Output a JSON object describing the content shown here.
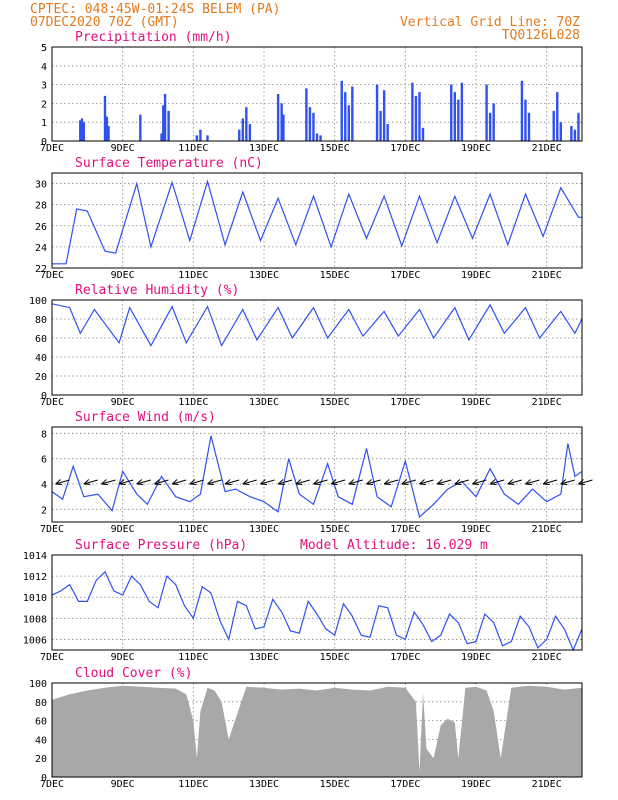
{
  "header": {
    "location": "CPTEC:  048:45W-01:24S  BELEM (PA)",
    "run": "07DEC2020 70Z (GMT)",
    "grid_line": "Vertical Grid Line: 70Z",
    "code": "TQ0126L028"
  },
  "colors": {
    "header": "#e07b1e",
    "title": "#e0117f",
    "series": "#3050f0",
    "cloud": "#a8a8a8"
  },
  "x_axis": {
    "ticks": [
      "7DEC",
      "9DEC",
      "11DEC",
      "13DEC",
      "15DEC",
      "17DEC",
      "19DEC",
      "21DEC"
    ],
    "range_days": [
      7,
      22
    ]
  },
  "chart_data": [
    {
      "id": "precip",
      "type": "bar",
      "title": "Precipitation (mm/h)",
      "ylim": [
        0,
        5
      ],
      "yticks": [
        "0",
        "1",
        "2",
        "3",
        "4",
        "5"
      ],
      "series": [
        {
          "x_days": [
            7.8,
            7.85,
            7.9,
            8.5,
            8.55,
            8.6,
            9.5,
            10.1,
            10.15,
            10.2,
            10.3,
            11.1,
            11.2,
            11.4,
            12.3,
            12.4,
            12.5,
            12.6,
            13.4,
            13.5,
            13.55,
            14.2,
            14.3,
            14.4,
            14.5,
            14.6,
            15.2,
            15.3,
            15.4,
            15.5,
            16.2,
            16.3,
            16.4,
            16.5,
            17.2,
            17.3,
            17.4,
            17.5,
            18.3,
            18.4,
            18.5,
            18.6,
            19.3,
            19.4,
            19.5,
            20.3,
            20.4,
            20.5,
            21.2,
            21.3,
            21.4,
            21.7,
            21.8,
            21.9
          ],
          "values": [
            1.1,
            1.2,
            1.0,
            2.4,
            1.3,
            0.8,
            1.4,
            0.4,
            1.9,
            2.5,
            1.6,
            0.3,
            0.6,
            0.3,
            0.6,
            1.2,
            1.8,
            0.9,
            2.5,
            2.0,
            1.4,
            2.8,
            1.8,
            1.5,
            0.4,
            0.3,
            3.2,
            2.6,
            1.9,
            2.9,
            3.0,
            1.6,
            2.7,
            0.9,
            3.1,
            2.4,
            2.6,
            0.7,
            3.0,
            2.6,
            2.2,
            3.1,
            3.0,
            1.5,
            2.0,
            3.2,
            2.2,
            1.5,
            1.6,
            2.6,
            1.0,
            0.8,
            0.6,
            1.5
          ]
        }
      ]
    },
    {
      "id": "temp",
      "type": "line",
      "title": "Surface Temperature (nC)",
      "ylim": [
        22,
        31
      ],
      "yticks": [
        "22",
        "24",
        "26",
        "28",
        "30"
      ],
      "series": [
        {
          "x_days": [
            7,
            7.4,
            7.7,
            8.0,
            8.5,
            8.8,
            9.4,
            9.8,
            10.4,
            10.9,
            11.4,
            11.9,
            12.4,
            12.9,
            13.4,
            13.9,
            14.4,
            14.9,
            15.4,
            15.9,
            16.4,
            16.9,
            17.4,
            17.9,
            18.4,
            18.9,
            19.4,
            19.9,
            20.4,
            20.9,
            21.4,
            21.9,
            22
          ],
          "values": [
            22.4,
            22.4,
            27.6,
            27.4,
            23.6,
            23.4,
            30.0,
            24.0,
            30.1,
            24.6,
            30.2,
            24.2,
            29.2,
            24.6,
            28.6,
            24.2,
            28.8,
            24.0,
            29.0,
            24.8,
            28.8,
            24.1,
            28.8,
            24.4,
            28.8,
            24.8,
            29.0,
            24.2,
            29.0,
            25.0,
            29.6,
            26.8,
            26.8
          ]
        }
      ]
    },
    {
      "id": "rh",
      "type": "line",
      "title": "Relative Humidity (%)",
      "ylim": [
        0,
        100
      ],
      "yticks": [
        "0",
        "20",
        "40",
        "60",
        "80",
        "100"
      ],
      "series": [
        {
          "x_days": [
            7,
            7.5,
            7.8,
            8.2,
            8.9,
            9.2,
            9.8,
            10.4,
            10.8,
            11.4,
            11.8,
            12.4,
            12.8,
            13.4,
            13.8,
            14.4,
            14.8,
            15.4,
            15.8,
            16.4,
            16.8,
            17.4,
            17.8,
            18.4,
            18.8,
            19.4,
            19.8,
            20.4,
            20.8,
            21.4,
            21.8,
            22
          ],
          "values": [
            96,
            92,
            65,
            90,
            55,
            92,
            52,
            93,
            55,
            93,
            52,
            90,
            58,
            92,
            60,
            92,
            60,
            90,
            62,
            88,
            62,
            90,
            60,
            92,
            58,
            95,
            65,
            92,
            60,
            88,
            65,
            80
          ]
        }
      ]
    },
    {
      "id": "wind",
      "type": "line",
      "title": "Surface Wind (m/s)",
      "ylim": [
        1,
        8.5
      ],
      "yticks": [
        "2",
        "4",
        "6",
        "8"
      ],
      "series": [
        {
          "x_days": [
            7,
            7.3,
            7.6,
            7.9,
            8.3,
            8.7,
            9.0,
            9.4,
            9.7,
            10.1,
            10.5,
            10.9,
            11.2,
            11.5,
            11.9,
            12.2,
            12.6,
            13.0,
            13.4,
            13.7,
            14.0,
            14.4,
            14.8,
            15.1,
            15.5,
            15.9,
            16.2,
            16.6,
            17.0,
            17.4,
            17.8,
            18.2,
            18.6,
            19.0,
            19.4,
            19.8,
            20.2,
            20.6,
            21.0,
            21.4,
            21.6,
            21.8,
            22
          ],
          "values": [
            3.4,
            2.8,
            5.4,
            3.0,
            3.2,
            1.9,
            5.0,
            3.2,
            2.4,
            4.6,
            3.0,
            2.6,
            3.2,
            7.8,
            3.4,
            3.6,
            3.0,
            2.6,
            1.8,
            6.0,
            3.2,
            2.4,
            5.6,
            3.0,
            2.4,
            6.8,
            3.0,
            2.2,
            5.8,
            1.4,
            2.4,
            3.6,
            4.2,
            3.0,
            5.2,
            3.2,
            2.4,
            3.6,
            2.6,
            3.2,
            7.2,
            4.6,
            5.0
          ]
        }
      ],
      "wind_arrows_x_days": [
        7.1,
        7.9,
        8.4,
        8.9,
        9.4,
        9.9,
        10.4,
        10.9,
        11.4,
        11.9,
        12.4,
        12.9,
        13.4,
        13.9,
        14.4,
        14.9,
        15.4,
        15.9,
        16.4,
        16.9,
        17.4,
        17.9,
        18.4,
        18.9,
        19.4,
        19.9,
        20.4,
        20.9,
        21.4,
        21.9
      ]
    },
    {
      "id": "pressure",
      "type": "line",
      "title": "Surface Pressure (hPa)",
      "annotation": "Model Altitude: 16.029 m",
      "ylim": [
        1005,
        1014
      ],
      "yticks": [
        "1006",
        "1008",
        "1010",
        "1012",
        "1014"
      ],
      "series": [
        {
          "x_days": [
            7,
            7.25,
            7.5,
            7.75,
            8.0,
            8.25,
            8.5,
            8.75,
            9.0,
            9.25,
            9.5,
            9.75,
            10.0,
            10.25,
            10.5,
            10.75,
            11.0,
            11.25,
            11.5,
            11.75,
            12.0,
            12.25,
            12.5,
            12.75,
            13.0,
            13.25,
            13.5,
            13.75,
            14.0,
            14.25,
            14.5,
            14.75,
            15.0,
            15.25,
            15.5,
            15.75,
            16.0,
            16.25,
            16.5,
            16.75,
            17.0,
            17.25,
            17.5,
            17.75,
            18.0,
            18.25,
            18.5,
            18.75,
            19.0,
            19.25,
            19.5,
            19.75,
            20.0,
            20.25,
            20.5,
            20.75,
            21.0,
            21.25,
            21.5,
            21.75,
            22
          ],
          "values": [
            1010.2,
            1010.6,
            1011.2,
            1009.6,
            1009.6,
            1011.6,
            1012.4,
            1010.6,
            1010.2,
            1012.0,
            1011.2,
            1009.6,
            1009.0,
            1012.0,
            1011.2,
            1009.2,
            1008.0,
            1011.0,
            1010.4,
            1007.8,
            1006.0,
            1009.6,
            1009.2,
            1007.0,
            1007.2,
            1009.8,
            1008.6,
            1006.8,
            1006.6,
            1009.6,
            1008.4,
            1007.0,
            1006.4,
            1009.4,
            1008.2,
            1006.4,
            1006.2,
            1009.2,
            1009.0,
            1006.4,
            1006.0,
            1008.6,
            1007.4,
            1005.8,
            1006.4,
            1008.4,
            1007.6,
            1005.6,
            1005.8,
            1008.4,
            1007.6,
            1005.4,
            1005.8,
            1008.2,
            1007.2,
            1005.2,
            1006.0,
            1008.2,
            1007.0,
            1004.8,
            1007.0
          ]
        }
      ]
    },
    {
      "id": "cloud",
      "type": "area",
      "title": "Cloud Cover (%)",
      "ylim": [
        0,
        100
      ],
      "yticks": [
        "0",
        "20",
        "40",
        "60",
        "80",
        "100"
      ],
      "series": [
        {
          "x_days": [
            7,
            7.5,
            8.0,
            8.5,
            9.0,
            9.5,
            10.0,
            10.5,
            10.8,
            11.0,
            11.1,
            11.2,
            11.4,
            11.6,
            11.8,
            12.0,
            12.5,
            13.0,
            13.5,
            14.0,
            14.5,
            15.0,
            15.5,
            16.0,
            16.5,
            17.0,
            17.3,
            17.4,
            17.5,
            17.6,
            17.8,
            18.0,
            18.2,
            18.4,
            18.5,
            18.7,
            19.0,
            19.3,
            19.5,
            19.7,
            20.0,
            20.5,
            21.0,
            21.5,
            22
          ],
          "values": [
            82,
            88,
            92,
            95,
            97,
            96,
            95,
            94,
            88,
            60,
            20,
            70,
            95,
            92,
            80,
            40,
            96,
            95,
            93,
            94,
            92,
            95,
            93,
            92,
            96,
            95,
            80,
            5,
            90,
            30,
            20,
            55,
            62,
            58,
            20,
            95,
            96,
            92,
            70,
            20,
            95,
            97,
            96,
            93,
            95
          ]
        }
      ]
    }
  ]
}
